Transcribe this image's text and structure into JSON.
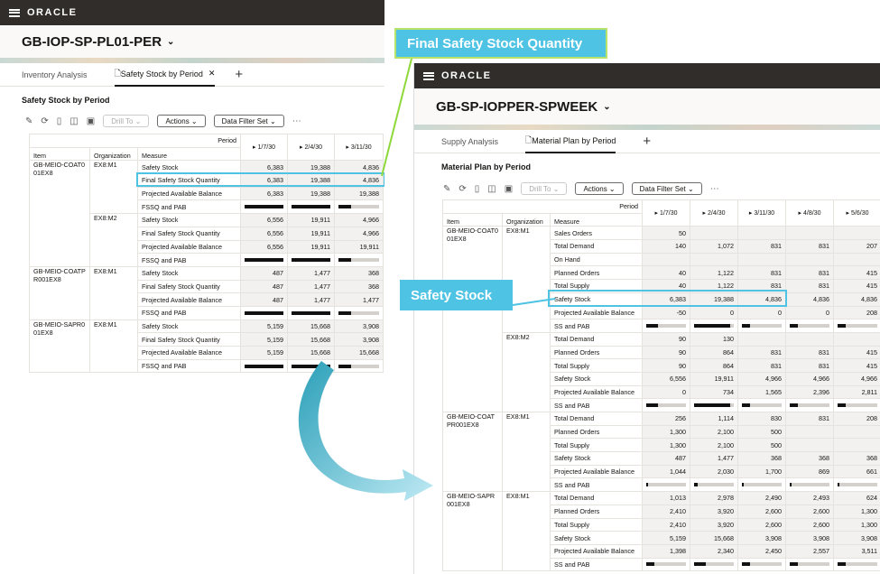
{
  "win1": {
    "brand": "ORACLE",
    "title": "GB-IOP-SP-PL01-PER",
    "tabs": [
      "Inventory Analysis",
      "Safety Stock by Period"
    ],
    "section": "Safety Stock by Period",
    "toolbar": {
      "drill": "Drill To",
      "actions": "Actions",
      "filter": "Data Filter Set"
    },
    "headers": {
      "period": "Period",
      "item": "Item",
      "org": "Organization",
      "measure": "Measure",
      "p1": "1/7/30",
      "p2": "2/4/30",
      "p3": "3/11/3​0"
    },
    "rows": [
      {
        "item": "GB-MEIO-COAT001EX8",
        "org": "EX8:M1",
        "m": "Safety Stock",
        "v": [
          "6,383",
          "19,388",
          "4,836"
        ]
      },
      {
        "m": "Final Safety Stock Quantity",
        "v": [
          "6,383",
          "19,388",
          "4,836"
        ]
      },
      {
        "m": "Projected Available Balance",
        "v": [
          "6,383",
          "19,388",
          "19,388"
        ]
      },
      {
        "m": "FSSQ and PAB",
        "bars": [
          1,
          1,
          0.3
        ]
      },
      {
        "org": "EX8:M2",
        "m": "Safety Stock",
        "v": [
          "6,556",
          "19,911",
          "4,966"
        ]
      },
      {
        "m": "Final Safety Stock Quantity",
        "v": [
          "6,556",
          "19,911",
          "4,966"
        ]
      },
      {
        "m": "Projected Available Balance",
        "v": [
          "6,556",
          "19,911",
          "19,911"
        ]
      },
      {
        "m": "FSSQ and PAB",
        "bars": [
          1,
          1,
          0.3
        ]
      },
      {
        "item": "GB-MEIO-COATPR001EX8",
        "org": "EX8:M1",
        "m": "Safety Stock",
        "v": [
          "487",
          "1,477",
          "368"
        ]
      },
      {
        "m": "Final Safety Stock Quantity",
        "v": [
          "487",
          "1,477",
          "368"
        ]
      },
      {
        "m": "Projected Available Balance",
        "v": [
          "487",
          "1,477",
          "1,477"
        ]
      },
      {
        "m": "FSSQ and PAB",
        "bars": [
          1,
          1,
          0.3
        ]
      },
      {
        "item": "GB-MEIO-SAPR001EX8",
        "org": "EX8:M1",
        "m": "Safety Stock",
        "v": [
          "5,159",
          "15,668",
          "3,908"
        ]
      },
      {
        "m": "Final Safety Stock Quantity",
        "v": [
          "5,159",
          "15,668",
          "3,908"
        ]
      },
      {
        "m": "Projected Available Balance",
        "v": [
          "5,159",
          "15,668",
          "15,668"
        ]
      },
      {
        "m": "FSSQ and PAB",
        "bars": [
          1,
          1,
          0.3
        ]
      }
    ]
  },
  "win2": {
    "brand": "ORACLE",
    "title": "GB-SP-IOPPER-SPWEEK",
    "tabs": [
      "Supply Analysis",
      "Material Plan by Period"
    ],
    "section": "Material Plan by Period",
    "toolbar": {
      "drill": "Drill To",
      "actions": "Actions",
      "filter": "Data Filter Set"
    },
    "headers": {
      "period": "Period",
      "item": "Item",
      "org": "Organization",
      "measure": "Measure",
      "p1": "1/7/30",
      "p2": "2/4/30",
      "p3": "3/11/3​0",
      "p4": "4/8/30",
      "p5": "5/6/30"
    },
    "rows": [
      {
        "item": "GB-MEIO-COAT001EX8",
        "org": "EX8:M1",
        "m": "Sales Orders",
        "v": [
          "50",
          "",
          "",
          "",
          ""
        ]
      },
      {
        "m": "Total Demand",
        "v": [
          "140",
          "1,072",
          "831",
          "831",
          "207"
        ]
      },
      {
        "m": "On Hand",
        "v": [
          "",
          "",
          "",
          "",
          ""
        ]
      },
      {
        "m": "Planned Orders",
        "v": [
          "40",
          "1,122",
          "831",
          "831",
          "415"
        ]
      },
      {
        "m": "Total Supply",
        "v": [
          "40",
          "1,122",
          "831",
          "831",
          "415"
        ]
      },
      {
        "m": "Safety Stock",
        "v": [
          "6,383",
          "19,388",
          "4,836",
          "4,836",
          "4,836"
        ]
      },
      {
        "m": "Projected Available Balance",
        "v": [
          "-50",
          "0",
          "0",
          "0",
          "208"
        ]
      },
      {
        "m": "SS and PAB",
        "bars": [
          0.3,
          0.9,
          0.2,
          0.2,
          0.2
        ]
      },
      {
        "org": "EX8:M2",
        "m": "Total Demand",
        "v": [
          "90",
          "130",
          "",
          "",
          ""
        ]
      },
      {
        "m": "Planned Orders",
        "v": [
          "90",
          "864",
          "831",
          "831",
          "415"
        ]
      },
      {
        "m": "Total Supply",
        "v": [
          "90",
          "864",
          "831",
          "831",
          "415"
        ]
      },
      {
        "m": "Safety Stock",
        "v": [
          "6,556",
          "19,911",
          "4,966",
          "4,966",
          "4,966"
        ]
      },
      {
        "m": "Projected Available Balance",
        "v": [
          "0",
          "734",
          "1,565",
          "2,396",
          "2,811"
        ]
      },
      {
        "m": "SS and PAB",
        "bars": [
          0.3,
          0.9,
          0.2,
          0.2,
          0.2
        ]
      },
      {
        "item": "GB-MEIO-COATPR001EX8",
        "org": "EX8:M1",
        "m": "Total Demand",
        "v": [
          "256",
          "1,114",
          "830",
          "831",
          "208"
        ]
      },
      {
        "m": "Planned Orders",
        "v": [
          "1,300",
          "2,100",
          "500",
          "",
          ""
        ]
      },
      {
        "m": "Total Supply",
        "v": [
          "1,300",
          "2,100",
          "500",
          "",
          ""
        ]
      },
      {
        "m": "Safety Stock",
        "v": [
          "487",
          "1,477",
          "368",
          "368",
          "368"
        ]
      },
      {
        "m": "Projected Available Balance",
        "v": [
          "1,044",
          "2,030",
          "1,700",
          "869",
          "661"
        ]
      },
      {
        "m": "SS and PAB",
        "bars": [
          0.05,
          0.1,
          0.05,
          0.05,
          0.05
        ]
      },
      {
        "item": "GB-MEIO-SAPR001EX8",
        "org": "EX8:M1",
        "m": "Total Demand",
        "v": [
          "1,013",
          "2,978",
          "2,490",
          "2,493",
          "624"
        ]
      },
      {
        "m": "Planned Orders",
        "v": [
          "2,410",
          "3,920",
          "2,600",
          "2,600",
          "1,300"
        ]
      },
      {
        "m": "Total Supply",
        "v": [
          "2,410",
          "3,920",
          "2,600",
          "2,600",
          "1,300"
        ]
      },
      {
        "m": "Safety Stock",
        "v": [
          "5,159",
          "15,668",
          "3,908",
          "3,908",
          "3,908"
        ]
      },
      {
        "m": "Projected Available Balance",
        "v": [
          "1,398",
          "2,340",
          "2,450",
          "2,557",
          "3,511"
        ]
      },
      {
        "m": "SS and PAB",
        "bars": [
          0.2,
          0.3,
          0.2,
          0.2,
          0.2
        ]
      }
    ]
  },
  "callouts": {
    "fssq": "Final Safety Stock Quantity",
    "ss": "Safety Stock"
  },
  "colors": {
    "accent": "#4fc3e3",
    "header": "#312d2a"
  }
}
